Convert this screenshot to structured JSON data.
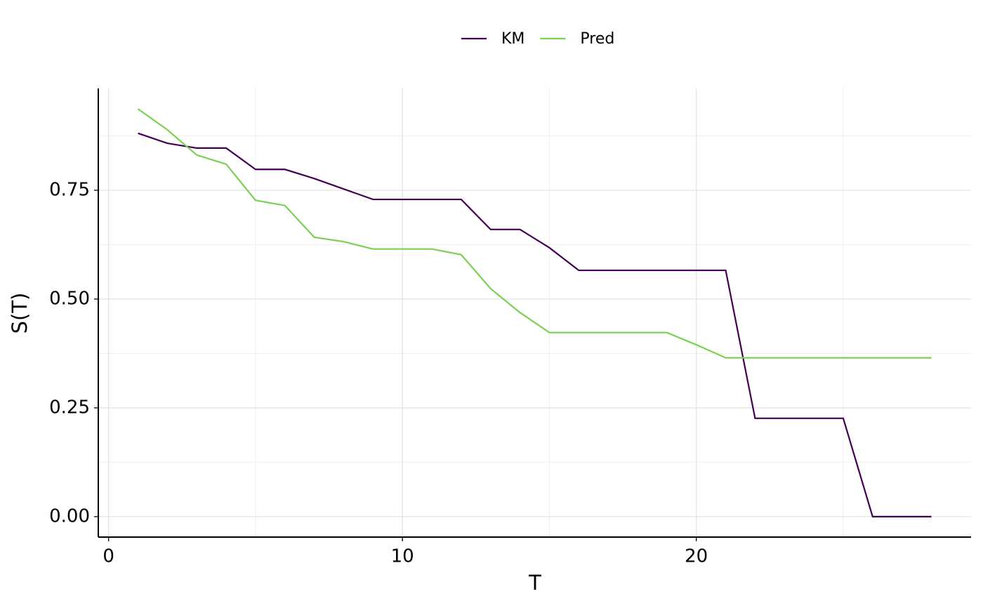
{
  "chart_data": {
    "type": "line",
    "x_label": "T",
    "y_label": "S(T)",
    "x": [
      1,
      2,
      3,
      4,
      5,
      6,
      7,
      8,
      9,
      10,
      11,
      12,
      13,
      14,
      15,
      16,
      17,
      18,
      19,
      20,
      21,
      22,
      23,
      24,
      25,
      26,
      27,
      28
    ],
    "series": [
      {
        "name": "KM",
        "color": "#440154",
        "values": [
          0.881,
          0.858,
          0.847,
          0.847,
          0.798,
          0.798,
          0.777,
          0.753,
          0.729,
          0.729,
          0.729,
          0.729,
          0.66,
          0.66,
          0.618,
          0.566,
          0.566,
          0.566,
          0.566,
          0.566,
          0.566,
          0.226,
          0.226,
          0.226,
          0.226,
          0,
          0,
          0
        ]
      },
      {
        "name": "Pred",
        "color": "#7AD151",
        "values": [
          0.937,
          0.889,
          0.831,
          0.81,
          0.727,
          0.715,
          0.642,
          0.632,
          0.615,
          0.615,
          0.615,
          0.602,
          0.524,
          0.469,
          0.423,
          0.423,
          0.423,
          0.423,
          0.423,
          0.395,
          0.365,
          0.365,
          0.365,
          0.365,
          0.365,
          0.365,
          0.365,
          0.365
        ]
      }
    ],
    "xlim": [
      -0.35,
      29.35
    ],
    "ylim": [
      -0.047,
      0.984
    ],
    "xticks": [
      0,
      10,
      20
    ],
    "yticks": [
      {
        "value": 0,
        "label": "0.00"
      },
      {
        "value": 0.25,
        "label": "0.25"
      },
      {
        "value": 0.5,
        "label": "0.50"
      },
      0.75
    ],
    "x_minor_grid": [
      5,
      15,
      25
    ],
    "y_minor_grid": [
      0.125,
      0.375,
      0.625,
      0.875
    ],
    "grid": true,
    "legend": "top"
  }
}
